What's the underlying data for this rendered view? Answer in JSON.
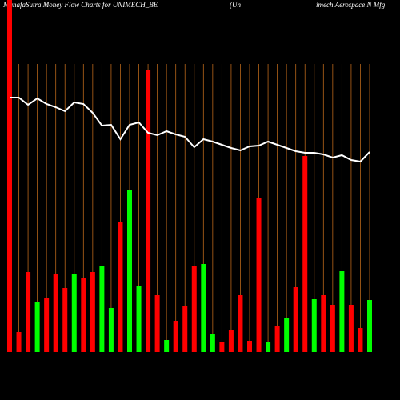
{
  "chart_data": {
    "type": "bar",
    "title": "MunafaSutra  Money Flow  Charts for UNIMECH_BE",
    "subtitle": [
      "(Un",
      "imech Aerospace  N  Mfg"
    ],
    "categories": [
      null,
      null,
      null,
      null,
      null,
      null,
      null,
      null,
      null,
      null,
      null,
      null,
      null,
      null,
      null,
      null,
      null,
      null,
      null,
      null,
      null,
      null,
      null,
      null,
      null,
      null,
      null,
      null,
      null,
      null,
      null,
      null,
      null,
      null,
      null,
      null,
      null,
      null,
      null,
      null
    ],
    "series": [
      {
        "type": "bar",
        "values": [
          440,
          25,
          100,
          63,
          68,
          98,
          80,
          97,
          92,
          100,
          108,
          55,
          163,
          203,
          82,
          352,
          71,
          15,
          39,
          58,
          108,
          110,
          22,
          13,
          28,
          71,
          14,
          193,
          12,
          33,
          43,
          81,
          245,
          66,
          71,
          59,
          101,
          59,
          30,
          65
        ],
        "colors": [
          "#ff0000",
          "#ff0000",
          "#ff0000",
          "#00ff00",
          "#ff0000",
          "#ff0000",
          "#ff0000",
          "#00ff00",
          "#ff0000",
          "#ff0000",
          "#00ff00",
          "#00ff00",
          "#ff0000",
          "#00ff00",
          "#00ff00",
          "#ff0000",
          "#ff0000",
          "#00ff00",
          "#ff0000",
          "#ff0000",
          "#ff0000",
          "#00ff00",
          "#00ff00",
          "#ff0000",
          "#ff0000",
          "#ff0000",
          "#ff0000",
          "#ff0000",
          "#00ff00",
          "#ff0000",
          "#00ff00",
          "#ff0000",
          "#ff0000",
          "#00ff00",
          "#ff0000",
          "#ff0000",
          "#00ff00",
          "#ff0000",
          "#ff0000",
          "#00ff00"
        ]
      },
      {
        "type": "line",
        "color": "#ffffff",
        "values": [
          318,
          318,
          309,
          317,
          310,
          306,
          301,
          312,
          310,
          299,
          283,
          284,
          266,
          284,
          287,
          274,
          271,
          276,
          272,
          269,
          256,
          266,
          263,
          259,
          255,
          252,
          257,
          258,
          263,
          259,
          255,
          251,
          249,
          249,
          247,
          243,
          246,
          240,
          238,
          250
        ]
      }
    ],
    "ylim": [
      0,
      440
    ],
    "grid": true,
    "grid_color": "#b8661a"
  }
}
